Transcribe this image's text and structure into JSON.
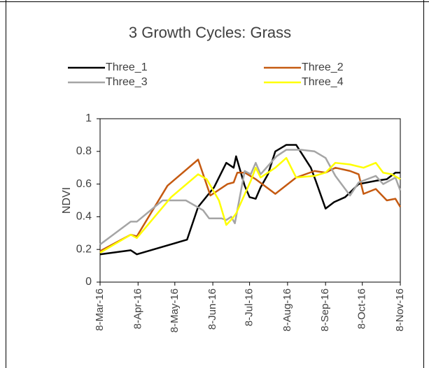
{
  "chart_data": {
    "type": "line",
    "title": "3 Growth Cycles: Grass",
    "ylabel": "NDVI",
    "ylim": [
      0,
      1
    ],
    "yticks": [
      0,
      0.2,
      0.4,
      0.6,
      0.8,
      1
    ],
    "xlim": [
      "2016-03-08",
      "2016-11-08"
    ],
    "xticks": [
      {
        "value": "2016-03-08",
        "label": "8-Mar-16"
      },
      {
        "value": "2016-04-08",
        "label": "8-Apr-16"
      },
      {
        "value": "2016-05-08",
        "label": "8-May-16"
      },
      {
        "value": "2016-06-08",
        "label": "8-Jun-16"
      },
      {
        "value": "2016-07-08",
        "label": "8-Jul-16"
      },
      {
        "value": "2016-08-08",
        "label": "8-Aug-16"
      },
      {
        "value": "2016-09-08",
        "label": "8-Sep-16"
      },
      {
        "value": "2016-10-08",
        "label": "8-Oct-16"
      },
      {
        "value": "2016-11-08",
        "label": "8-Nov-16"
      }
    ],
    "series": [
      {
        "name": "Three_1",
        "color": "#000000",
        "x": [
          "2016-03-08",
          "2016-04-02",
          "2016-04-07",
          "2016-05-18",
          "2016-05-27",
          "2016-06-09",
          "2016-06-19",
          "2016-06-25",
          "2016-06-27",
          "2016-07-04",
          "2016-07-08",
          "2016-07-13",
          "2016-07-17",
          "2016-07-23",
          "2016-07-29",
          "2016-08-07",
          "2016-08-15",
          "2016-08-27",
          "2016-08-31",
          "2016-09-08",
          "2016-09-15",
          "2016-09-24",
          "2016-10-05",
          "2016-10-19",
          "2016-10-28",
          "2016-11-04",
          "2016-11-08"
        ],
        "values": [
          0.17,
          0.195,
          0.17,
          0.26,
          0.46,
          0.58,
          0.73,
          0.7,
          0.77,
          0.59,
          0.52,
          0.51,
          0.58,
          0.66,
          0.8,
          0.84,
          0.84,
          0.7,
          0.62,
          0.45,
          0.49,
          0.52,
          0.6,
          0.62,
          0.63,
          0.67,
          0.67
        ]
      },
      {
        "name": "Three_2",
        "color": "#c55a11",
        "x": [
          "2016-03-08",
          "2016-04-02",
          "2016-04-07",
          "2016-05-02",
          "2016-05-27",
          "2016-06-06",
          "2016-06-20",
          "2016-06-25",
          "2016-06-28",
          "2016-07-04",
          "2016-07-13",
          "2016-07-29",
          "2016-08-15",
          "2016-08-30",
          "2016-09-08",
          "2016-09-16",
          "2016-09-28",
          "2016-10-05",
          "2016-10-09",
          "2016-10-19",
          "2016-10-28",
          "2016-11-04",
          "2016-11-08"
        ],
        "values": [
          0.19,
          0.29,
          0.28,
          0.59,
          0.75,
          0.53,
          0.6,
          0.61,
          0.67,
          0.67,
          0.63,
          0.54,
          0.64,
          0.68,
          0.67,
          0.7,
          0.68,
          0.66,
          0.54,
          0.57,
          0.5,
          0.51,
          0.46
        ]
      },
      {
        "name": "Three_3",
        "color": "#a5a5a5",
        "x": [
          "2016-03-08",
          "2016-04-02",
          "2016-04-07",
          "2016-04-28",
          "2016-05-17",
          "2016-05-31",
          "2016-06-05",
          "2016-06-15",
          "2016-06-19",
          "2016-06-23",
          "2016-06-26",
          "2016-07-04",
          "2016-07-09",
          "2016-07-13",
          "2016-07-17",
          "2016-07-30",
          "2016-08-07",
          "2016-08-19",
          "2016-08-30",
          "2016-09-08",
          "2016-09-16",
          "2016-09-28",
          "2016-10-05",
          "2016-10-19",
          "2016-10-25",
          "2016-11-04",
          "2016-11-08"
        ],
        "values": [
          0.23,
          0.37,
          0.37,
          0.5,
          0.5,
          0.44,
          0.39,
          0.39,
          0.38,
          0.4,
          0.36,
          0.68,
          0.66,
          0.73,
          0.66,
          0.77,
          0.81,
          0.81,
          0.8,
          0.76,
          0.65,
          0.53,
          0.61,
          0.65,
          0.6,
          0.64,
          0.56
        ]
      },
      {
        "name": "Three_4",
        "color": "#ffff00",
        "x": [
          "2016-03-08",
          "2016-04-02",
          "2016-04-07",
          "2016-05-05",
          "2016-05-27",
          "2016-06-03",
          "2016-06-13",
          "2016-06-19",
          "2016-06-24",
          "2016-06-27",
          "2016-07-09",
          "2016-07-13",
          "2016-07-17",
          "2016-07-29",
          "2016-08-07",
          "2016-08-15",
          "2016-08-30",
          "2016-09-08",
          "2016-09-16",
          "2016-09-28",
          "2016-10-09",
          "2016-10-19",
          "2016-10-25",
          "2016-11-01",
          "2016-11-08"
        ],
        "values": [
          0.18,
          0.29,
          0.27,
          0.52,
          0.66,
          0.63,
          0.5,
          0.35,
          0.39,
          0.42,
          0.62,
          0.7,
          0.64,
          0.7,
          0.76,
          0.64,
          0.65,
          0.67,
          0.73,
          0.72,
          0.7,
          0.73,
          0.67,
          0.66,
          0.63
        ]
      }
    ]
  }
}
